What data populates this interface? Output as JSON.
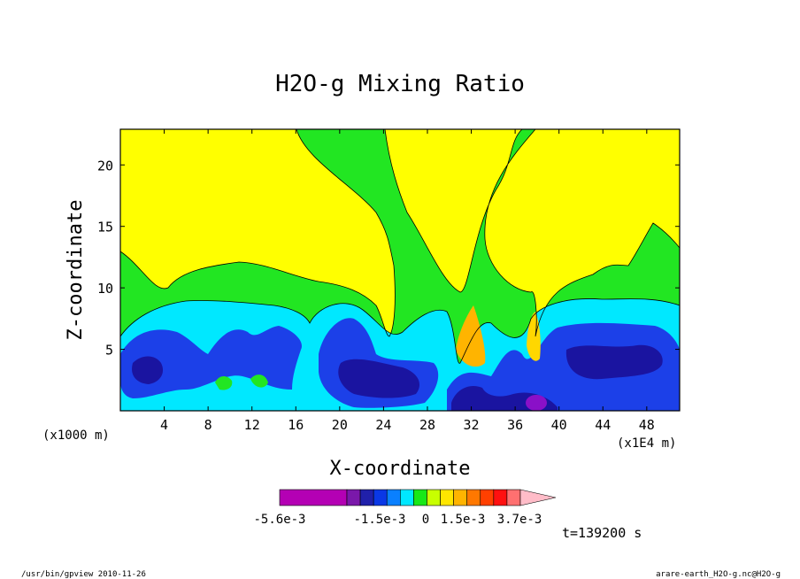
{
  "chart_data": {
    "type": "heatmap",
    "title": "H2O-g Mixing Ratio",
    "xlabel": "X-coordinate",
    "ylabel": "Z-coordinate",
    "x_unit_left": "(x1000 m)",
    "x_unit_right": "(x1E4 m)",
    "xlim": [
      0,
      51
    ],
    "ylim": [
      0,
      22.9
    ],
    "x_ticks": [
      4,
      8,
      12,
      16,
      20,
      24,
      28,
      32,
      36,
      40,
      44,
      48
    ],
    "y_ticks": [
      5,
      10,
      15,
      20
    ],
    "colorbar": {
      "colors": [
        "#b400b4",
        "#7a18aa",
        "#2020aa",
        "#0a38e6",
        "#0a80ff",
        "#00e8ff",
        "#18e818",
        "#c8ff00",
        "#ffe600",
        "#ffb400",
        "#ff7800",
        "#ff4000",
        "#ff1010",
        "#ff7070",
        "#ffbcc8"
      ],
      "labels": [
        "-5.6e-3",
        "-1.5e-3",
        "0",
        "1.5e-3",
        "3.7e-3"
      ]
    },
    "time_label": "t=139200 s",
    "regions": {
      "yellow": "#ffff00",
      "green": "#22e622",
      "cyan": "#00e8ff",
      "blue": "#1c40e8",
      "darkblue": "#1a14a0",
      "purple": "#8a10c8",
      "orange": "#ffb400",
      "gold": "#ffd700"
    }
  },
  "footer": {
    "left": "/usr/bin/gpview   2010-11-26",
    "right": "arare-earth_H2O-g.nc@H2O-g"
  }
}
